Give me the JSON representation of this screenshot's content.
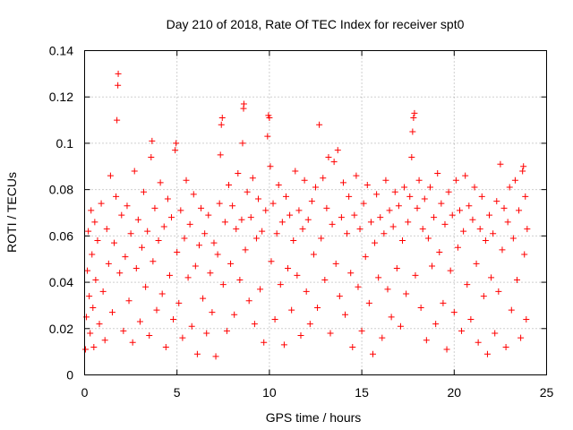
{
  "chart_data": {
    "type": "scatter",
    "title": "Day 210 of 2018, Rate Of TEC Index for receiver spt0",
    "xlabel": "GPS time / hours",
    "ylabel": "ROTI / TECUs",
    "xlim": [
      0,
      25
    ],
    "ylim": [
      0,
      0.14
    ],
    "xticks": [
      0,
      5,
      10,
      15,
      20,
      25
    ],
    "xtick_labels": [
      "0",
      "5",
      "10",
      "15",
      "20",
      "25"
    ],
    "yticks": [
      0,
      0.02,
      0.04,
      0.06,
      0.08,
      0.1,
      0.12,
      0.14
    ],
    "ytick_labels": [
      "0",
      "0.02",
      "0.04",
      "0.06",
      "0.08",
      "0.1",
      "0.12",
      "0.14"
    ],
    "grid": true,
    "marker": "plus",
    "marker_color": "#ff0000",
    "series": [
      {
        "name": "spt0",
        "points": [
          [
            0.05,
            0.011
          ],
          [
            0.1,
            0.025
          ],
          [
            0.15,
            0.045
          ],
          [
            0.2,
            0.062
          ],
          [
            0.25,
            0.034
          ],
          [
            0.3,
            0.018
          ],
          [
            0.35,
            0.071
          ],
          [
            0.4,
            0.052
          ],
          [
            0.45,
            0.029
          ],
          [
            0.5,
            0.012
          ],
          [
            0.55,
            0.066
          ],
          [
            0.6,
            0.041
          ],
          [
            0.7,
            0.058
          ],
          [
            0.8,
            0.022
          ],
          [
            0.9,
            0.074
          ],
          [
            1.0,
            0.036
          ],
          [
            1.1,
            0.015
          ],
          [
            1.2,
            0.063
          ],
          [
            1.3,
            0.048
          ],
          [
            1.4,
            0.086
          ],
          [
            1.5,
            0.027
          ],
          [
            1.6,
            0.057
          ],
          [
            1.7,
            0.077
          ],
          [
            1.75,
            0.11
          ],
          [
            1.8,
            0.125
          ],
          [
            1.82,
            0.13
          ],
          [
            1.9,
            0.044
          ],
          [
            2.0,
            0.069
          ],
          [
            2.1,
            0.019
          ],
          [
            2.2,
            0.051
          ],
          [
            2.3,
            0.073
          ],
          [
            2.4,
            0.032
          ],
          [
            2.5,
            0.061
          ],
          [
            2.6,
            0.014
          ],
          [
            2.7,
            0.088
          ],
          [
            2.8,
            0.046
          ],
          [
            2.9,
            0.067
          ],
          [
            3.0,
            0.023
          ],
          [
            3.1,
            0.055
          ],
          [
            3.2,
            0.079
          ],
          [
            3.3,
            0.038
          ],
          [
            3.4,
            0.062
          ],
          [
            3.5,
            0.017
          ],
          [
            3.6,
            0.094
          ],
          [
            3.65,
            0.101
          ],
          [
            3.7,
            0.049
          ],
          [
            3.8,
            0.072
          ],
          [
            3.9,
            0.028
          ],
          [
            4.0,
            0.058
          ],
          [
            4.1,
            0.083
          ],
          [
            4.2,
            0.035
          ],
          [
            4.3,
            0.064
          ],
          [
            4.4,
            0.012
          ],
          [
            4.5,
            0.076
          ],
          [
            4.6,
            0.043
          ],
          [
            4.7,
            0.068
          ],
          [
            4.8,
            0.024
          ],
          [
            4.9,
            0.097
          ],
          [
            4.95,
            0.1
          ],
          [
            5.0,
            0.053
          ],
          [
            5.1,
            0.031
          ],
          [
            5.2,
            0.071
          ],
          [
            5.3,
            0.016
          ],
          [
            5.4,
            0.059
          ],
          [
            5.5,
            0.084
          ],
          [
            5.6,
            0.042
          ],
          [
            5.7,
            0.065
          ],
          [
            5.8,
            0.021
          ],
          [
            5.9,
            0.078
          ],
          [
            6.0,
            0.047
          ],
          [
            6.1,
            0.009
          ],
          [
            6.2,
            0.056
          ],
          [
            6.3,
            0.072
          ],
          [
            6.4,
            0.033
          ],
          [
            6.5,
            0.061
          ],
          [
            6.6,
            0.018
          ],
          [
            6.7,
            0.069
          ],
          [
            6.8,
            0.044
          ],
          [
            6.9,
            0.027
          ],
          [
            7.0,
            0.057
          ],
          [
            7.1,
            0.008
          ],
          [
            7.2,
            0.052
          ],
          [
            7.3,
            0.074
          ],
          [
            7.35,
            0.095
          ],
          [
            7.4,
            0.108
          ],
          [
            7.45,
            0.111
          ],
          [
            7.5,
            0.039
          ],
          [
            7.6,
            0.066
          ],
          [
            7.7,
            0.019
          ],
          [
            7.8,
            0.082
          ],
          [
            7.9,
            0.048
          ],
          [
            8.0,
            0.073
          ],
          [
            8.1,
            0.026
          ],
          [
            8.2,
            0.063
          ],
          [
            8.3,
            0.087
          ],
          [
            8.4,
            0.041
          ],
          [
            8.5,
            0.067
          ],
          [
            8.55,
            0.1
          ],
          [
            8.6,
            0.115
          ],
          [
            8.62,
            0.117
          ],
          [
            8.7,
            0.054
          ],
          [
            8.8,
            0.079
          ],
          [
            8.9,
            0.032
          ],
          [
            9.0,
            0.068
          ],
          [
            9.1,
            0.085
          ],
          [
            9.2,
            0.022
          ],
          [
            9.3,
            0.059
          ],
          [
            9.4,
            0.076
          ],
          [
            9.5,
            0.037
          ],
          [
            9.6,
            0.062
          ],
          [
            9.7,
            0.014
          ],
          [
            9.8,
            0.071
          ],
          [
            9.9,
            0.103
          ],
          [
            9.95,
            0.112
          ],
          [
            10.0,
            0.111
          ],
          [
            10.05,
            0.09
          ],
          [
            10.1,
            0.049
          ],
          [
            10.2,
            0.074
          ],
          [
            10.3,
            0.024
          ],
          [
            10.4,
            0.061
          ],
          [
            10.5,
            0.082
          ],
          [
            10.6,
            0.039
          ],
          [
            10.7,
            0.066
          ],
          [
            10.8,
            0.013
          ],
          [
            10.9,
            0.077
          ],
          [
            11.0,
            0.046
          ],
          [
            11.1,
            0.069
          ],
          [
            11.2,
            0.028
          ],
          [
            11.3,
            0.058
          ],
          [
            11.4,
            0.088
          ],
          [
            11.5,
            0.043
          ],
          [
            11.6,
            0.071
          ],
          [
            11.7,
            0.017
          ],
          [
            11.8,
            0.063
          ],
          [
            11.9,
            0.084
          ],
          [
            12.0,
            0.036
          ],
          [
            12.1,
            0.067
          ],
          [
            12.2,
            0.022
          ],
          [
            12.3,
            0.075
          ],
          [
            12.4,
            0.052
          ],
          [
            12.5,
            0.081
          ],
          [
            12.6,
            0.029
          ],
          [
            12.7,
            0.108
          ],
          [
            12.8,
            0.059
          ],
          [
            12.9,
            0.085
          ],
          [
            13.0,
            0.041
          ],
          [
            13.1,
            0.072
          ],
          [
            13.2,
            0.094
          ],
          [
            13.3,
            0.018
          ],
          [
            13.4,
            0.065
          ],
          [
            13.5,
            0.092
          ],
          [
            13.6,
            0.048
          ],
          [
            13.7,
            0.097
          ],
          [
            13.8,
            0.034
          ],
          [
            13.9,
            0.068
          ],
          [
            14.0,
            0.083
          ],
          [
            14.1,
            0.026
          ],
          [
            14.2,
            0.061
          ],
          [
            14.3,
            0.077
          ],
          [
            14.4,
            0.044
          ],
          [
            14.5,
            0.012
          ],
          [
            14.6,
            0.069
          ],
          [
            14.7,
            0.086
          ],
          [
            14.8,
            0.038
          ],
          [
            14.9,
            0.063
          ],
          [
            15.0,
            0.019
          ],
          [
            15.1,
            0.074
          ],
          [
            15.2,
            0.051
          ],
          [
            15.3,
            0.082
          ],
          [
            15.4,
            0.031
          ],
          [
            15.5,
            0.066
          ],
          [
            15.6,
            0.009
          ],
          [
            15.7,
            0.057
          ],
          [
            15.8,
            0.078
          ],
          [
            15.9,
            0.042
          ],
          [
            16.0,
            0.068
          ],
          [
            16.1,
            0.016
          ],
          [
            16.2,
            0.061
          ],
          [
            16.3,
            0.084
          ],
          [
            16.4,
            0.037
          ],
          [
            16.5,
            0.071
          ],
          [
            16.6,
            0.025
          ],
          [
            16.7,
            0.064
          ],
          [
            16.8,
            0.079
          ],
          [
            16.9,
            0.046
          ],
          [
            17.0,
            0.073
          ],
          [
            17.1,
            0.021
          ],
          [
            17.2,
            0.058
          ],
          [
            17.3,
            0.081
          ],
          [
            17.4,
            0.035
          ],
          [
            17.5,
            0.066
          ],
          [
            17.6,
            0.077
          ],
          [
            17.7,
            0.094
          ],
          [
            17.75,
            0.105
          ],
          [
            17.8,
            0.111
          ],
          [
            17.85,
            0.113
          ],
          [
            17.9,
            0.043
          ],
          [
            18.0,
            0.072
          ],
          [
            18.1,
            0.084
          ],
          [
            18.2,
            0.029
          ],
          [
            18.3,
            0.063
          ],
          [
            18.4,
            0.076
          ],
          [
            18.5,
            0.015
          ],
          [
            18.6,
            0.059
          ],
          [
            18.7,
            0.081
          ],
          [
            18.8,
            0.047
          ],
          [
            18.9,
            0.068
          ],
          [
            19.0,
            0.022
          ],
          [
            19.1,
            0.087
          ],
          [
            19.2,
            0.053
          ],
          [
            19.3,
            0.074
          ],
          [
            19.4,
            0.031
          ],
          [
            19.5,
            0.065
          ],
          [
            19.6,
            0.011
          ],
          [
            19.7,
            0.079
          ],
          [
            19.8,
            0.045
          ],
          [
            19.9,
            0.069
          ],
          [
            20.0,
            0.027
          ],
          [
            20.1,
            0.084
          ],
          [
            20.2,
            0.055
          ],
          [
            20.3,
            0.071
          ],
          [
            20.4,
            0.019
          ],
          [
            20.5,
            0.062
          ],
          [
            20.6,
            0.086
          ],
          [
            20.7,
            0.039
          ],
          [
            20.8,
            0.073
          ],
          [
            20.9,
            0.024
          ],
          [
            21.0,
            0.067
          ],
          [
            21.1,
            0.081
          ],
          [
            21.2,
            0.048
          ],
          [
            21.3,
            0.014
          ],
          [
            21.4,
            0.063
          ],
          [
            21.5,
            0.077
          ],
          [
            21.6,
            0.034
          ],
          [
            21.7,
            0.058
          ],
          [
            21.8,
            0.009
          ],
          [
            21.9,
            0.069
          ],
          [
            22.0,
            0.042
          ],
          [
            22.1,
            0.061
          ],
          [
            22.2,
            0.018
          ],
          [
            22.3,
            0.075
          ],
          [
            22.4,
            0.036
          ],
          [
            22.5,
            0.091
          ],
          [
            22.6,
            0.054
          ],
          [
            22.7,
            0.072
          ],
          [
            22.8,
            0.012
          ],
          [
            22.9,
            0.066
          ],
          [
            23.0,
            0.081
          ],
          [
            23.1,
            0.028
          ],
          [
            23.2,
            0.059
          ],
          [
            23.3,
            0.084
          ],
          [
            23.4,
            0.041
          ],
          [
            23.5,
            0.071
          ],
          [
            23.6,
            0.016
          ],
          [
            23.7,
            0.088
          ],
          [
            23.75,
            0.09
          ],
          [
            23.8,
            0.052
          ],
          [
            23.85,
            0.077
          ],
          [
            23.9,
            0.024
          ],
          [
            23.95,
            0.063
          ]
        ]
      }
    ]
  }
}
